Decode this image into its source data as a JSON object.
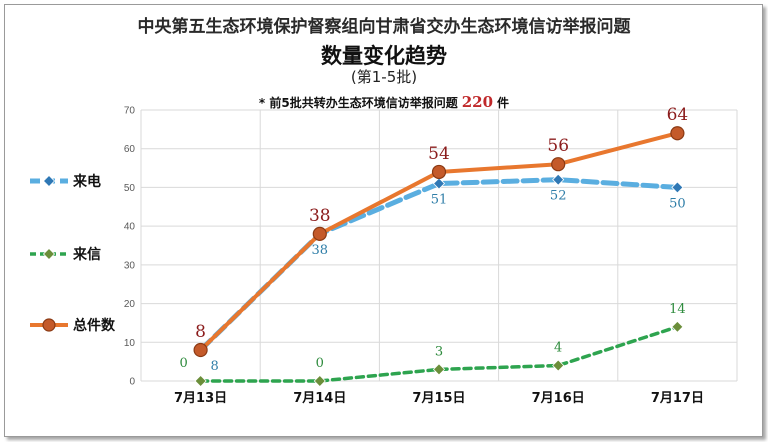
{
  "header": {
    "title": "中央第五生态环境保护督察组向甘肃省交办生态环境信访举报问题",
    "subtitle": "数量变化趋势",
    "batch": "(第1-5批)",
    "note_prefix": "* 前5批共转办生态环境信访举报问题",
    "note_total": "220",
    "note_suffix": "件"
  },
  "chart_data": {
    "type": "line",
    "categories": [
      "7月13日",
      "7月14日",
      "7月15日",
      "7月16日",
      "7月17日"
    ],
    "ylim": [
      0,
      70
    ],
    "yticks": [
      0,
      10,
      20,
      30,
      40,
      50,
      60,
      70
    ],
    "grid": true,
    "legend_position": "left",
    "series": [
      {
        "name": "来电",
        "values": [
          8,
          38,
          51,
          52,
          50
        ],
        "color": "#5aaee0",
        "marker": "diamond",
        "label_color": "#2f7ea8"
      },
      {
        "name": "来信",
        "values": [
          0,
          0,
          3,
          4,
          14
        ],
        "color": "#2ea44f",
        "marker": "diamond",
        "label_color": "#2e8b3d"
      },
      {
        "name": "总件数",
        "values": [
          8,
          38,
          54,
          56,
          64
        ],
        "color": "#e8772e",
        "marker": "circle",
        "label_color": "#8b1c1c"
      }
    ]
  }
}
